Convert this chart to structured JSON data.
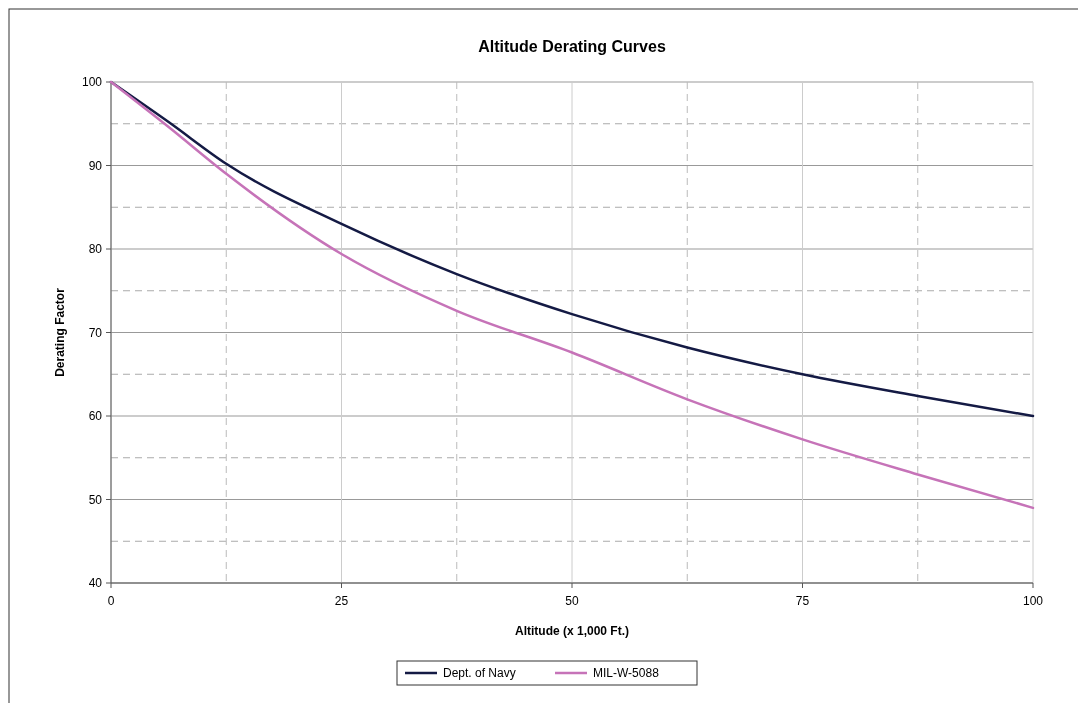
{
  "chart_data": {
    "type": "line",
    "title": "Altitude Derating Curves",
    "xlabel": "Altitude (x 1,000 Ft.)",
    "ylabel": "Derating Factor",
    "x": [
      0,
      6.25,
      12.5,
      25,
      37.5,
      50,
      62.5,
      75,
      87.5,
      100
    ],
    "series": [
      {
        "name": "Dept. of Navy",
        "color": "#141a44",
        "values": [
          100,
          95.2,
          90.2,
          83.0,
          77.0,
          72.2,
          68.2,
          65.0,
          62.4,
          60.0
        ]
      },
      {
        "name": "MIL-W-5088",
        "color": "#c673b8",
        "values": [
          100,
          94.6,
          89.0,
          79.4,
          72.6,
          67.6,
          62.0,
          57.2,
          53.0,
          49.0
        ]
      }
    ],
    "xlim": [
      0,
      100
    ],
    "xticks": [
      0,
      {
        "value": 12.5,
        "label": null
      },
      25,
      {
        "value": 37.5,
        "label": null
      },
      50,
      {
        "value": 62.5,
        "label": null
      },
      75,
      {
        "value": 87.5,
        "label": null
      },
      100
    ],
    "ylim": [
      40,
      100
    ],
    "yticks": [
      40,
      {
        "value": 45,
        "label": null
      },
      50,
      {
        "value": 55,
        "label": null
      },
      60,
      {
        "value": 65,
        "label": null
      },
      70,
      {
        "value": 75,
        "label": null
      },
      80,
      {
        "value": 85,
        "label": null
      },
      90,
      {
        "value": 95,
        "label": null
      },
      100
    ],
    "grid": true,
    "legend": "bottom",
    "marker": "none",
    "line_style": "solid"
  }
}
